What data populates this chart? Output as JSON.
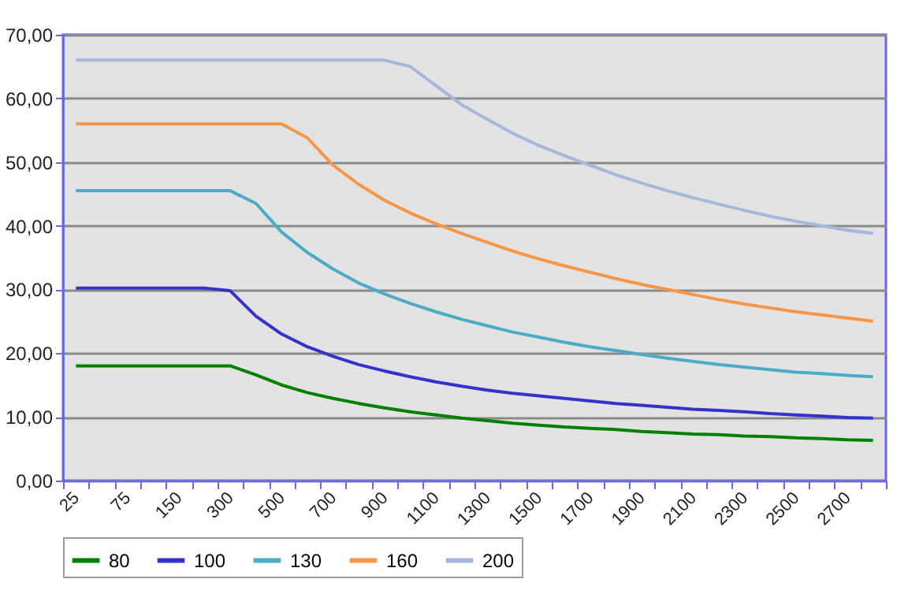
{
  "chart_data": {
    "type": "line",
    "categories": [
      "25",
      null,
      "75",
      null,
      "150",
      null,
      "300",
      null,
      "500",
      null,
      "700",
      null,
      "900",
      null,
      "1100",
      null,
      "1300",
      null,
      "1500",
      null,
      "1700",
      null,
      "1900",
      null,
      "2100",
      null,
      "2300",
      null,
      "2500",
      null,
      "2700",
      null
    ],
    "series": [
      {
        "name": "80",
        "color": "#008000",
        "values": [
          18,
          18,
          18,
          18,
          18,
          18,
          18,
          16.6,
          15.0,
          13.8,
          12.9,
          12.1,
          11.4,
          10.8,
          10.3,
          9.8,
          9.4,
          9.0,
          8.7,
          8.4,
          8.2,
          8.0,
          7.7,
          7.5,
          7.3,
          7.2,
          7.0,
          6.9,
          6.7,
          6.6,
          6.4,
          6.3
        ]
      },
      {
        "name": "100",
        "color": "#3333cc",
        "values": [
          30.2,
          30.2,
          30.2,
          30.2,
          30.2,
          30.2,
          29.8,
          25.8,
          23.0,
          21.0,
          19.5,
          18.2,
          17.2,
          16.3,
          15.5,
          14.8,
          14.2,
          13.7,
          13.3,
          12.9,
          12.5,
          12.1,
          11.8,
          11.5,
          11.2,
          11.0,
          10.8,
          10.5,
          10.3,
          10.1,
          9.9,
          9.8
        ]
      },
      {
        "name": "130",
        "color": "#4bacc6",
        "values": [
          45.5,
          45.5,
          45.5,
          45.5,
          45.5,
          45.5,
          45.5,
          43.5,
          39.0,
          35.8,
          33.2,
          31.0,
          29.3,
          27.8,
          26.5,
          25.3,
          24.3,
          23.3,
          22.5,
          21.7,
          21.0,
          20.4,
          19.8,
          19.2,
          18.7,
          18.2,
          17.8,
          17.4,
          17.0,
          16.8,
          16.5,
          16.3
        ]
      },
      {
        "name": "160",
        "color": "#f79646",
        "values": [
          56,
          56,
          56,
          56,
          56,
          56,
          56,
          56,
          56,
          53.8,
          49.5,
          46.5,
          44.0,
          42.0,
          40.3,
          38.8,
          37.4,
          36.0,
          34.8,
          33.7,
          32.7,
          31.7,
          30.8,
          30.0,
          29.2,
          28.4,
          27.7,
          27.1,
          26.5,
          26.0,
          25.5,
          25.0
        ]
      },
      {
        "name": "200",
        "color": "#a5b8dc",
        "values": [
          66,
          66,
          66,
          66,
          66,
          66,
          66,
          66,
          66,
          66,
          66,
          66,
          66,
          65,
          62,
          59,
          56.7,
          54.5,
          52.6,
          51,
          49.5,
          48,
          46.7,
          45.5,
          44.4,
          43.4,
          42.4,
          41.5,
          40.7,
          40,
          39.3,
          38.8
        ]
      }
    ],
    "ylim": [
      0,
      70
    ],
    "yticks": [
      {
        "value": 0,
        "label": "0,00"
      },
      {
        "value": 10,
        "label": "10,00"
      },
      {
        "value": 20,
        "label": "20,00"
      },
      {
        "value": 30,
        "label": "30,00"
      },
      {
        "value": 40,
        "label": "40,00"
      },
      {
        "value": 50,
        "label": "50,00"
      },
      {
        "value": 60,
        "label": "60,00"
      },
      {
        "value": 70,
        "label": "70,00"
      }
    ],
    "grid": "y",
    "legend": "bottom",
    "marker": "none",
    "line_style": "solid"
  }
}
